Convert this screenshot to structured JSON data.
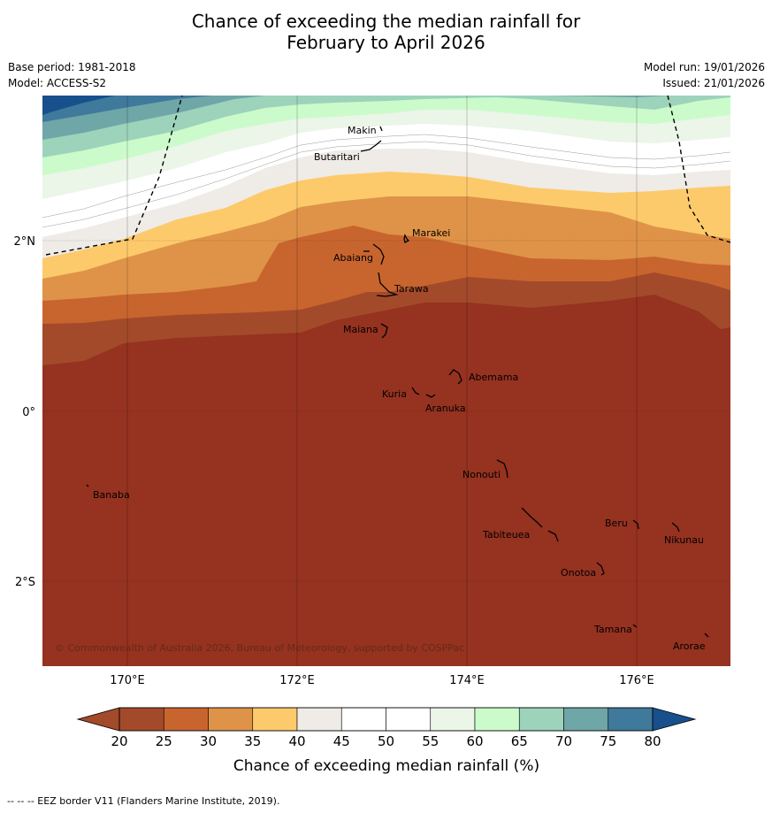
{
  "title": {
    "line1": "Chance of exceeding the median rainfall for",
    "line2": "February to April 2026"
  },
  "meta": {
    "base_period": "Base period: 1981-2018",
    "model": "Model: ACCESS-S2",
    "model_run": "Model run: 19/01/2026",
    "issued": "Issued: 21/01/2026"
  },
  "map": {
    "lon_range": [
      169,
      177.1
    ],
    "lat_range": [
      -3.0,
      3.7
    ],
    "x_ticks": [
      "170°E",
      "172°E",
      "174°E",
      "176°E"
    ],
    "y_ticks": [
      "2°N",
      "0°",
      "2°S"
    ],
    "copyright": "© Commonwealth of Australia 2026, Bureau of Meteorology, supported by COSPPac",
    "places": [
      {
        "name": "Makin",
        "lon": 172.98,
        "lat": 3.35
      },
      {
        "name": "Butaritari",
        "lon": 172.8,
        "lat": 3.07
      },
      {
        "name": "Marakei",
        "lon": 173.3,
        "lat": 2.0
      },
      {
        "name": "Abaiang",
        "lon": 173.0,
        "lat": 1.82
      },
      {
        "name": "Tarawa",
        "lon": 173.05,
        "lat": 1.38
      },
      {
        "name": "Maiana",
        "lon": 173.0,
        "lat": 0.95
      },
      {
        "name": "Abemama",
        "lon": 173.85,
        "lat": 0.4
      },
      {
        "name": "Kuria",
        "lon": 173.4,
        "lat": 0.2
      },
      {
        "name": "Aranuka",
        "lon": 173.6,
        "lat": 0.17
      },
      {
        "name": "Nonouti",
        "lon": 174.4,
        "lat": -0.67
      },
      {
        "name": "Banaba",
        "lon": 169.53,
        "lat": -0.87
      },
      {
        "name": "Beru",
        "lon": 175.98,
        "lat": -1.33
      },
      {
        "name": "Nikunau",
        "lon": 176.45,
        "lat": -1.36
      },
      {
        "name": "Tabiteuea",
        "lon": 174.8,
        "lat": -1.3
      },
      {
        "name": "Onotoa",
        "lon": 175.55,
        "lat": -1.83
      },
      {
        "name": "Tamana",
        "lon": 175.98,
        "lat": -2.5
      },
      {
        "name": "Arorae",
        "lon": 176.82,
        "lat": -2.64
      }
    ]
  },
  "colorbar": {
    "ticks": [
      "20",
      "25",
      "30",
      "35",
      "40",
      "45",
      "50",
      "55",
      "60",
      "65",
      "70",
      "75",
      "80"
    ],
    "label": "Chance of exceeding median rainfall (%)",
    "under_color": "#a34a2a",
    "over_color": "#17508c",
    "colors": [
      "#a34a2a",
      "#c8652f",
      "#df9348",
      "#fdca6b",
      "#efebe6",
      "#ffffff",
      "#ffffff",
      "#ebf5e8",
      "#cbfbcb",
      "#9dd3bb",
      "#6fa6a7",
      "#3f799b"
    ]
  },
  "footer": "--  --  -- EEZ border V11 (Flanders Marine Institute, 2019)."
}
